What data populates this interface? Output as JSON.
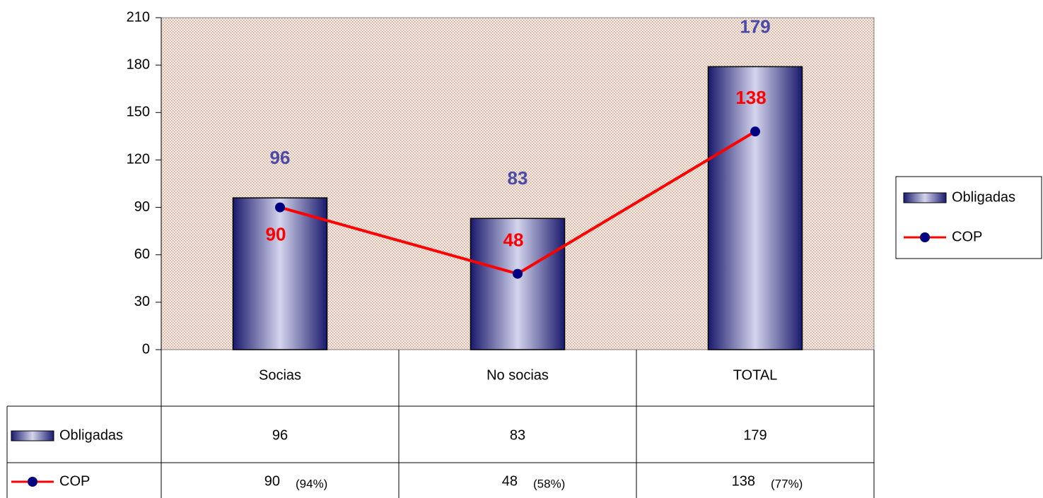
{
  "chart_data": {
    "type": "bar",
    "categories": [
      "Socias",
      "No socias",
      "TOTAL"
    ],
    "series": [
      {
        "name": "Obligadas",
        "type": "bar",
        "color": "#1a1a6e",
        "label_color": "#4a4aa8",
        "values": [
          96,
          83,
          179
        ]
      },
      {
        "name": "COP",
        "type": "line",
        "color": "#ff0000",
        "marker_color": "#000080",
        "values": [
          90,
          48,
          138
        ],
        "shares": [
          "(94%)",
          "(58%)",
          "(77%)"
        ]
      }
    ],
    "ylim": [
      0,
      210
    ],
    "yticks": [
      0,
      30,
      60,
      90,
      120,
      150,
      180,
      210
    ],
    "legend": "right",
    "data_table": true
  }
}
